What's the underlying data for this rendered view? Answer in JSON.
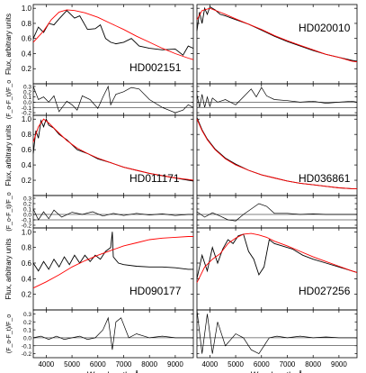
{
  "colors": {
    "observed": "#000000",
    "model": "#ff0000",
    "axis": "#000000",
    "zero_line": "#000000"
  },
  "figure": {
    "xlabel": "Wavelength, Å",
    "flux_ylabel": "Flux, arbitrary units",
    "resid_ylabel": "(F_o-F_t)/F_o"
  },
  "chart_data": [
    {
      "type": "line",
      "name": "HD002151",
      "xlim": [
        3500,
        9700
      ],
      "flux_ylim": [
        0,
        1.05
      ],
      "resid_ylim": [
        -0.25,
        0.35
      ],
      "model": {
        "x": [
          3500,
          3900,
          4200,
          4500,
          4800,
          5100,
          5500,
          6000,
          6500,
          7000,
          7500,
          8000,
          8500,
          9000,
          9500,
          9700
        ],
        "y": [
          0.55,
          0.7,
          0.85,
          0.95,
          0.98,
          0.97,
          0.94,
          0.88,
          0.8,
          0.72,
          0.63,
          0.55,
          0.47,
          0.4,
          0.34,
          0.32
        ]
      },
      "observed": {
        "x": [
          3500,
          3700,
          3900,
          4100,
          4300,
          4500,
          4800,
          5100,
          5300,
          5600,
          5900,
          6100,
          6300,
          6500,
          6700,
          7000,
          7300,
          7600,
          8000,
          8500,
          9000,
          9300,
          9500,
          9700
        ],
        "y": [
          0.6,
          0.75,
          0.68,
          0.8,
          0.78,
          0.86,
          0.97,
          0.87,
          0.9,
          0.72,
          0.73,
          0.78,
          0.6,
          0.55,
          0.53,
          0.55,
          0.6,
          0.5,
          0.47,
          0.45,
          0.46,
          0.38,
          0.5,
          0.47
        ]
      },
      "residual": {
        "x": [
          3500,
          3700,
          3900,
          4100,
          4300,
          4500,
          4800,
          5000,
          5200,
          5400,
          5700,
          6000,
          6200,
          6400,
          6500,
          6700,
          7000,
          7300,
          7600,
          8000,
          8500,
          9000,
          9300,
          9500,
          9700
        ],
        "y": [
          0.3,
          0.05,
          0.1,
          0.0,
          0.12,
          -0.18,
          0.02,
          -0.05,
          -0.15,
          0.12,
          0.05,
          -0.12,
          0.1,
          0.3,
          -0.05,
          0.15,
          0.2,
          0.28,
          0.25,
          0.05,
          -0.1,
          -0.2,
          -0.15,
          -0.05,
          -0.1
        ]
      }
    },
    {
      "type": "line",
      "name": "HD020010",
      "xlim": [
        3500,
        9700
      ],
      "flux_ylim": [
        0,
        1.05
      ],
      "resid_ylim": [
        -0.25,
        0.35
      ],
      "model": {
        "x": [
          3500,
          3700,
          4000,
          4300,
          4600,
          5000,
          5500,
          6000,
          6500,
          7000,
          7500,
          8000,
          8500,
          9000,
          9500,
          9700
        ],
        "y": [
          0.85,
          0.97,
          1.0,
          0.96,
          0.92,
          0.86,
          0.79,
          0.72,
          0.64,
          0.57,
          0.51,
          0.45,
          0.39,
          0.35,
          0.3,
          0.29
        ]
      },
      "observed": {
        "x": [
          3500,
          3600,
          3700,
          3800,
          3900,
          4000,
          4200,
          4400,
          4600,
          5000,
          5500,
          6000,
          6500,
          7000,
          7500,
          8000,
          8500,
          9000,
          9500,
          9700
        ],
        "y": [
          0.7,
          0.95,
          0.8,
          1.0,
          0.92,
          1.02,
          0.98,
          0.92,
          0.9,
          0.85,
          0.79,
          0.71,
          0.63,
          0.56,
          0.5,
          0.44,
          0.39,
          0.35,
          0.31,
          0.3
        ]
      },
      "residual": {
        "x": [
          3500,
          3600,
          3700,
          3800,
          3900,
          4000,
          4100,
          4300,
          4600,
          5000,
          5300,
          5600,
          5800,
          6000,
          6200,
          6500,
          7000,
          7500,
          8000,
          8500,
          9000,
          9500,
          9700
        ],
        "y": [
          0.15,
          -0.1,
          0.15,
          -0.1,
          0.1,
          -0.08,
          0.08,
          0.0,
          0.05,
          -0.05,
          0.1,
          0.25,
          0.1,
          0.28,
          0.12,
          0.05,
          0.03,
          0.0,
          0.02,
          -0.02,
          0.0,
          0.02,
          0.0
        ]
      }
    },
    {
      "type": "line",
      "name": "HD011171",
      "xlim": [
        3500,
        9700
      ],
      "flux_ylim": [
        0,
        1.05
      ],
      "resid_ylim": [
        -0.25,
        0.35
      ],
      "model": {
        "x": [
          3500,
          3700,
          3900,
          4100,
          4400,
          4800,
          5200,
          5600,
          6000,
          6500,
          7000,
          7500,
          8000,
          8500,
          9000,
          9500,
          9700
        ],
        "y": [
          0.7,
          0.9,
          1.0,
          0.95,
          0.85,
          0.72,
          0.62,
          0.55,
          0.49,
          0.43,
          0.37,
          0.33,
          0.29,
          0.26,
          0.23,
          0.21,
          0.2
        ]
      },
      "observed": {
        "x": [
          3500,
          3600,
          3700,
          3800,
          3900,
          4000,
          4100,
          4300,
          4500,
          4800,
          5200,
          5600,
          6000,
          6500,
          7000,
          7500,
          8000,
          8500,
          9000,
          9500,
          9700
        ],
        "y": [
          0.55,
          0.85,
          0.75,
          0.98,
          0.9,
          1.0,
          0.92,
          0.88,
          0.8,
          0.73,
          0.6,
          0.55,
          0.48,
          0.43,
          0.37,
          0.33,
          0.29,
          0.26,
          0.23,
          0.2,
          0.19
        ]
      },
      "residual": {
        "x": [
          3500,
          3700,
          3900,
          4100,
          4300,
          4600,
          5000,
          5400,
          5800,
          6200,
          6600,
          7000,
          7500,
          8000,
          8500,
          9000,
          9500,
          9700
        ],
        "y": [
          0.1,
          -0.1,
          0.05,
          -0.08,
          0.08,
          -0.05,
          0.04,
          0.0,
          0.05,
          -0.03,
          0.02,
          -0.02,
          0.02,
          -0.01,
          0.01,
          -0.02,
          0.0,
          0.0
        ]
      }
    },
    {
      "type": "line",
      "name": "HD036861",
      "xlim": [
        3500,
        9700
      ],
      "flux_ylim": [
        0,
        1.05
      ],
      "resid_ylim": [
        -0.25,
        0.35
      ],
      "model": {
        "x": [
          3500,
          3700,
          3900,
          4200,
          4600,
          5000,
          5500,
          6000,
          6500,
          7000,
          7500,
          8000,
          8500,
          9000,
          9500,
          9700
        ],
        "y": [
          1.0,
          0.85,
          0.73,
          0.6,
          0.48,
          0.4,
          0.33,
          0.27,
          0.23,
          0.19,
          0.16,
          0.14,
          0.12,
          0.1,
          0.09,
          0.09
        ]
      },
      "observed": {
        "x": [
          3500,
          3700,
          3900,
          4200,
          4600,
          5000,
          5500,
          6000,
          6500,
          7000,
          7500,
          8000,
          8500,
          9000,
          9500,
          9700
        ],
        "y": [
          1.02,
          0.86,
          0.74,
          0.61,
          0.49,
          0.41,
          0.33,
          0.27,
          0.23,
          0.19,
          0.16,
          0.14,
          0.12,
          0.1,
          0.09,
          0.09
        ]
      },
      "residual": {
        "x": [
          3500,
          3800,
          4100,
          4400,
          4700,
          5000,
          5300,
          5600,
          5900,
          6200,
          6500,
          7000,
          7500,
          8000,
          8500,
          9000,
          9500,
          9700
        ],
        "y": [
          0.05,
          -0.05,
          0.03,
          -0.03,
          -0.1,
          -0.12,
          0.0,
          0.1,
          0.2,
          0.15,
          0.02,
          0.02,
          0.0,
          0.01,
          0.0,
          0.0,
          0.0,
          0.0
        ]
      }
    },
    {
      "type": "line",
      "name": "HD090177",
      "xlim": [
        3500,
        9700
      ],
      "flux_ylim": [
        0,
        1.05
      ],
      "resid_ylim": [
        -0.25,
        0.35
      ],
      "model": {
        "x": [
          3500,
          4000,
          4500,
          5000,
          5500,
          6000,
          6500,
          7000,
          7500,
          8000,
          8500,
          9000,
          9500,
          9700
        ],
        "y": [
          0.28,
          0.36,
          0.45,
          0.55,
          0.63,
          0.7,
          0.76,
          0.82,
          0.86,
          0.9,
          0.92,
          0.93,
          0.94,
          0.94
        ]
      },
      "observed": {
        "x": [
          3500,
          3700,
          3900,
          4100,
          4300,
          4500,
          4700,
          4900,
          5100,
          5300,
          5500,
          5700,
          5900,
          6100,
          6300,
          6500,
          6560,
          6600,
          6800,
          7000,
          7500,
          8000,
          8500,
          9000,
          9500,
          9700
        ],
        "y": [
          0.6,
          0.5,
          0.62,
          0.52,
          0.65,
          0.55,
          0.68,
          0.58,
          0.7,
          0.6,
          0.7,
          0.62,
          0.7,
          0.65,
          0.75,
          0.8,
          1.0,
          0.68,
          0.6,
          0.58,
          0.56,
          0.55,
          0.55,
          0.54,
          0.52,
          0.52
        ]
      },
      "residual": {
        "x": [
          3500,
          3800,
          4100,
          4400,
          4700,
          5000,
          5300,
          5600,
          5900,
          6200,
          6400,
          6560,
          6700,
          6900,
          7200,
          7500,
          8000,
          8500,
          9000,
          9500,
          9700
        ],
        "y": [
          0.0,
          0.02,
          -0.02,
          0.02,
          -0.02,
          0.0,
          0.02,
          -0.02,
          0.0,
          0.1,
          0.25,
          -0.15,
          0.2,
          0.25,
          0.0,
          0.05,
          0.0,
          0.02,
          0.0,
          0.0,
          0.0
        ]
      }
    },
    {
      "type": "line",
      "name": "HD027256",
      "xlim": [
        3500,
        9700
      ],
      "flux_ylim": [
        0,
        1.05
      ],
      "resid_ylim": [
        -0.25,
        0.35
      ],
      "model": {
        "x": [
          3500,
          3800,
          4100,
          4400,
          4700,
          5000,
          5300,
          5600,
          5900,
          6200,
          6500,
          7000,
          7500,
          8000,
          8500,
          9000,
          9500,
          9700
        ],
        "y": [
          0.35,
          0.55,
          0.65,
          0.72,
          0.85,
          0.92,
          0.97,
          0.98,
          0.96,
          0.93,
          0.88,
          0.82,
          0.75,
          0.68,
          0.62,
          0.56,
          0.5,
          0.48
        ]
      },
      "observed": {
        "x": [
          3500,
          3700,
          3900,
          4100,
          4300,
          4500,
          4700,
          4900,
          5100,
          5300,
          5500,
          5700,
          5900,
          6100,
          6300,
          6500,
          6800,
          7200,
          7600,
          8000,
          8500,
          9000,
          9500,
          9700
        ],
        "y": [
          0.4,
          0.7,
          0.5,
          0.8,
          0.6,
          0.78,
          0.9,
          0.85,
          0.95,
          0.97,
          0.75,
          0.65,
          0.45,
          0.55,
          0.9,
          0.85,
          0.82,
          0.78,
          0.7,
          0.65,
          0.6,
          0.55,
          0.5,
          0.48
        ]
      },
      "residual": {
        "x": [
          3500,
          3700,
          3900,
          4100,
          4300,
          4600,
          5000,
          5300,
          5600,
          5900,
          6100,
          6300,
          6600,
          7000,
          7500,
          8000,
          8500,
          9000,
          9500,
          9700
        ],
        "y": [
          0.35,
          -0.2,
          0.3,
          -0.2,
          0.2,
          -0.1,
          0.05,
          0.0,
          -0.15,
          -0.2,
          -0.1,
          0.0,
          0.02,
          0.0,
          0.02,
          0.0,
          0.01,
          0.0,
          0.0,
          0.0
        ]
      }
    }
  ],
  "ticks": {
    "x_labels": [
      "4000",
      "5000",
      "6000",
      "7000",
      "8000",
      "9000"
    ],
    "flux_labels": [
      "0.2",
      "0.4",
      "0.6",
      "0.8",
      "1.0"
    ],
    "resid_labels": [
      "-0.2",
      "-0.1",
      "0.0",
      "0.1",
      "0.2",
      "0.3"
    ]
  }
}
